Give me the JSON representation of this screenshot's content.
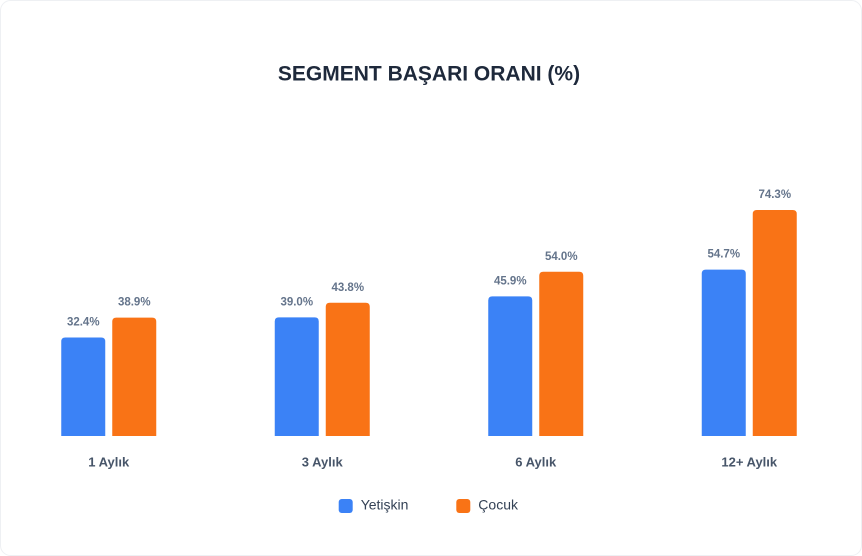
{
  "chart_data": {
    "type": "bar",
    "title": "SEGMENT BAŞARI ORANI (%)",
    "categories": [
      "1 Aylık",
      "3 Aylık",
      "6 Aylık",
      "12+ Aylık"
    ],
    "series": [
      {
        "name": "Yetişkin",
        "color": "#3b82f6",
        "values": [
          32.4,
          39.0,
          45.9,
          54.7
        ],
        "value_labels": [
          "32.4%",
          "39.0%",
          "45.9%",
          "54.7%"
        ]
      },
      {
        "name": "Çocuk",
        "color": "#f97316",
        "values": [
          38.9,
          43.8,
          54.0,
          74.3
        ],
        "value_labels": [
          "38.9%",
          "43.8%",
          "54.0%",
          "74.3%"
        ]
      }
    ],
    "legend": "bottom"
  }
}
